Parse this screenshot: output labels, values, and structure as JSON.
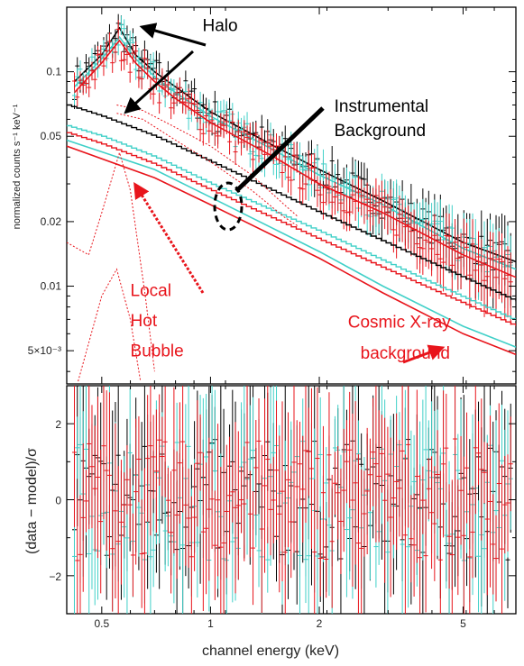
{
  "chart_data": [
    {
      "type": "line",
      "panel": "spectrum",
      "xlabel": "channel energy (keV)",
      "ylabel": "normalized counts s⁻¹ keV⁻¹",
      "xscale": "log",
      "yscale": "log",
      "xlim": [
        0.4,
        7
      ],
      "ylim": [
        0.0035,
        0.2
      ],
      "x_ticks": [
        {
          "value": 0.5,
          "label": "0.5"
        },
        {
          "value": 1,
          "label": "1"
        },
        {
          "value": 2,
          "label": "2"
        },
        {
          "value": 5,
          "label": "5"
        }
      ],
      "y_ticks": [
        {
          "value": 0.1,
          "label": "0.1"
        },
        {
          "value": 0.05,
          "label": "0.05"
        },
        {
          "value": 0.02,
          "label": "0.02"
        },
        {
          "value": 0.01,
          "label": "0.01"
        },
        {
          "value": 0.005,
          "label": "5×10⁻³"
        }
      ],
      "colors": {
        "black": "#000000",
        "cyan": "#40d0c8",
        "red": "#e8141b"
      },
      "series": [
        {
          "color": "black",
          "style": "data",
          "x": [
            0.42,
            0.5,
            0.56,
            0.62,
            0.7,
            0.8,
            1.0,
            1.5,
            2.0,
            3.0,
            5.0,
            7.0
          ],
          "y": [
            0.09,
            0.12,
            0.16,
            0.12,
            0.1,
            0.085,
            0.065,
            0.045,
            0.035,
            0.025,
            0.016,
            0.013
          ]
        },
        {
          "color": "cyan",
          "style": "data",
          "x": [
            0.42,
            0.5,
            0.56,
            0.62,
            0.7,
            0.8,
            1.0,
            1.5,
            2.0,
            3.0,
            5.0,
            7.0
          ],
          "y": [
            0.085,
            0.115,
            0.145,
            0.115,
            0.095,
            0.08,
            0.062,
            0.043,
            0.033,
            0.024,
            0.015,
            0.012
          ]
        },
        {
          "color": "red",
          "style": "data",
          "x": [
            0.42,
            0.5,
            0.56,
            0.62,
            0.7,
            0.8,
            1.0,
            1.5,
            2.0,
            3.0,
            5.0,
            7.0
          ],
          "y": [
            0.08,
            0.11,
            0.14,
            0.11,
            0.09,
            0.075,
            0.058,
            0.04,
            0.03,
            0.022,
            0.014,
            0.011
          ]
        },
        {
          "color": "black",
          "style": "step",
          "x": [
            0.4,
            0.5,
            0.7,
            1.0,
            2.0,
            4.0,
            7.0
          ],
          "y": [
            0.07,
            0.062,
            0.05,
            0.038,
            0.022,
            0.013,
            0.0085
          ]
        },
        {
          "color": "cyan",
          "style": "step",
          "x": [
            0.4,
            0.5,
            0.7,
            1.0,
            2.0,
            4.0,
            7.0
          ],
          "y": [
            0.056,
            0.05,
            0.04,
            0.03,
            0.018,
            0.0105,
            0.0069
          ]
        },
        {
          "color": "red",
          "style": "step",
          "x": [
            0.4,
            0.5,
            0.7,
            1.0,
            2.0,
            4.0,
            7.0
          ],
          "y": [
            0.052,
            0.046,
            0.037,
            0.028,
            0.0165,
            0.0098,
            0.0065
          ]
        },
        {
          "color": "cyan",
          "style": "line",
          "x": [
            0.4,
            0.7,
            1.0,
            2.0,
            3.0,
            5.0,
            7.0
          ],
          "y": [
            0.048,
            0.035,
            0.026,
            0.0145,
            0.01,
            0.0065,
            0.0052
          ]
        },
        {
          "color": "red",
          "style": "line",
          "x": [
            0.4,
            0.7,
            1.0,
            2.0,
            3.0,
            5.0,
            7.0
          ],
          "y": [
            0.045,
            0.032,
            0.024,
            0.0135,
            0.0093,
            0.006,
            0.0048
          ]
        }
      ],
      "annotations": [
        {
          "text": "Halo",
          "color": "black",
          "x": 0.95,
          "y": 0.155
        },
        {
          "text": "Instrumental",
          "color": "black",
          "x": 2.2,
          "y": 0.065
        },
        {
          "text": "Background",
          "color": "black",
          "x": 2.2,
          "y": 0.05
        },
        {
          "text": "Local",
          "color": "red",
          "x": 0.6,
          "y": 0.009
        },
        {
          "text": "Hot",
          "color": "red",
          "x": 0.6,
          "y": 0.0065
        },
        {
          "text": "Bubble",
          "color": "red",
          "x": 0.6,
          "y": 0.0047
        },
        {
          "text": "Cosmic X-ray",
          "color": "red",
          "x": 2.4,
          "y": 0.0064
        },
        {
          "text": "background",
          "color": "red",
          "x": 2.6,
          "y": 0.0046
        }
      ]
    },
    {
      "type": "scatter",
      "panel": "residuals",
      "xlabel": "channel energy (keV)",
      "ylabel": "(data − model)/σ",
      "xscale": "log",
      "xlim": [
        0.4,
        7
      ],
      "ylim": [
        -3,
        3
      ],
      "x_ticks": [
        {
          "value": 0.5,
          "label": "0.5"
        },
        {
          "value": 1,
          "label": "1"
        },
        {
          "value": 2,
          "label": "2"
        },
        {
          "value": 5,
          "label": "5"
        }
      ],
      "y_ticks": [
        {
          "value": 2,
          "label": "2"
        },
        {
          "value": 0,
          "label": "0"
        },
        {
          "value": -2,
          "label": "−2"
        }
      ],
      "series": [
        {
          "color": "black",
          "x": [
            0.45,
            0.55,
            0.7,
            0.9,
            1.2,
            1.6,
            2.2,
            3.0,
            4.0,
            5.5
          ],
          "y": [
            0.3,
            -0.6,
            0.8,
            -0.2,
            0.5,
            -0.9,
            0.1,
            0.7,
            -0.4,
            0.2
          ]
        },
        {
          "color": "cyan",
          "x": [
            0.46,
            0.58,
            0.72,
            0.95,
            1.25,
            1.7,
            2.3,
            3.2,
            4.2,
            5.8
          ],
          "y": [
            -0.4,
            0.9,
            -0.3,
            0.6,
            -0.8,
            0.2,
            -0.5,
            0.4,
            0.1,
            -0.7
          ]
        },
        {
          "color": "red",
          "x": [
            0.47,
            0.6,
            0.75,
            1.0,
            1.3,
            1.8,
            2.4,
            3.4,
            4.5,
            6.0
          ],
          "y": [
            0.6,
            -0.2,
            0.4,
            -0.7,
            0.3,
            0.8,
            -0.3,
            -0.6,
            0.5,
            0.1
          ]
        }
      ]
    }
  ]
}
